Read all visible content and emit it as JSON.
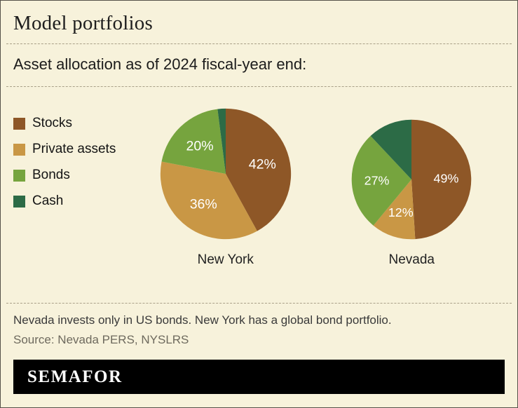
{
  "header": {
    "title": "Model portfolios",
    "subtitle": "Asset allocation as of 2024 fiscal-year end:"
  },
  "legend": {
    "position": "left",
    "items": [
      {
        "label": "Stocks",
        "color": "#8e5727"
      },
      {
        "label": "Private assets",
        "color": "#c99745"
      },
      {
        "label": "Bonds",
        "color": "#76a43e"
      },
      {
        "label": "Cash",
        "color": "#2c6b46"
      }
    ]
  },
  "chart_data": [
    {
      "type": "pie",
      "title": "New York",
      "labels": [
        "Stocks",
        "Private assets",
        "Bonds",
        "Cash"
      ],
      "values": [
        42,
        36,
        20,
        2
      ],
      "data_labels": [
        "42%",
        "36%",
        "20%",
        ""
      ],
      "colors": [
        "#8e5727",
        "#c99745",
        "#76a43e",
        "#2c6b46"
      ],
      "start_angle_deg": 0,
      "direction": "clockwise"
    },
    {
      "type": "pie",
      "title": "Nevada",
      "labels": [
        "Stocks",
        "Private assets",
        "Bonds",
        "Cash"
      ],
      "values": [
        49,
        12,
        27,
        12
      ],
      "data_labels": [
        "49%",
        "12%",
        "27%",
        ""
      ],
      "colors": [
        "#8e5727",
        "#c99745",
        "#76a43e",
        "#2c6b46"
      ],
      "start_angle_deg": 0,
      "direction": "clockwise"
    }
  ],
  "footer": {
    "note": "Nevada invests only in US bonds. New York has a global bond portfolio.",
    "source": "Source: Nevada PERS, NYSLRS",
    "brand": "SEMAFOR"
  },
  "colors": {
    "background": "#f7f2db",
    "divider": "#a9a088",
    "brand_bar": "#000000",
    "brand_text": "#ffffff"
  }
}
